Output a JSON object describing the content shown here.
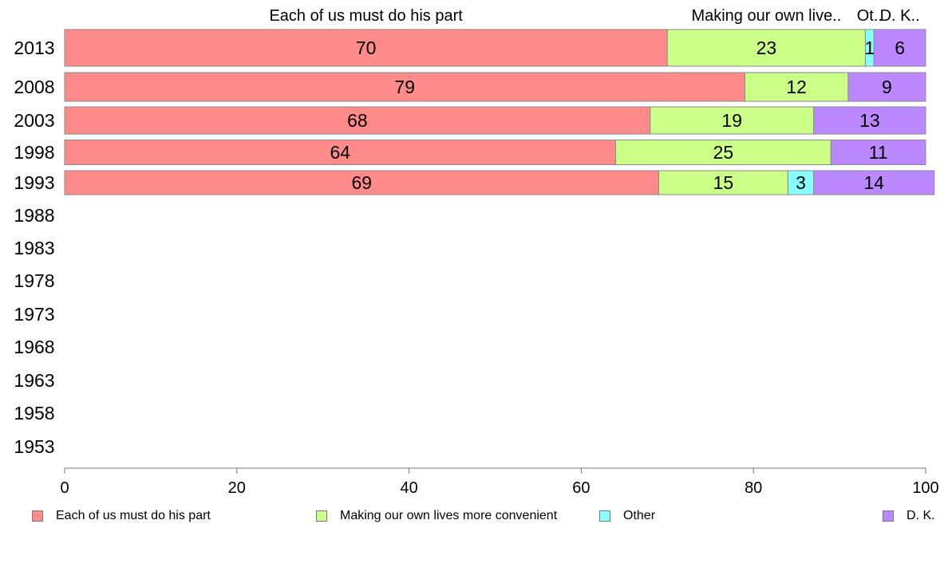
{
  "chart_data": {
    "type": "bar",
    "orientation": "horizontal",
    "stacked": true,
    "categories": [
      "2013",
      "2008",
      "2003",
      "1998",
      "1993",
      "1988",
      "1983",
      "1978",
      "1973",
      "1968",
      "1963",
      "1958",
      "1953"
    ],
    "series": [
      {
        "name": "Each of us must do his part",
        "color": "#ff8a8a",
        "values": [
          70,
          79,
          68,
          64,
          69,
          null,
          null,
          null,
          null,
          null,
          null,
          null,
          null
        ]
      },
      {
        "name": "Making our own lives more convenient",
        "color": "#ccff88",
        "values": [
          23,
          12,
          19,
          25,
          15,
          null,
          null,
          null,
          null,
          null,
          null,
          null,
          null
        ]
      },
      {
        "name": "Other",
        "color": "#88ffff",
        "values": [
          1,
          0,
          0,
          0,
          3,
          null,
          null,
          null,
          null,
          null,
          null,
          null,
          null
        ]
      },
      {
        "name": "D. K.",
        "color": "#bb88ff",
        "values": [
          6,
          9,
          13,
          11,
          14,
          null,
          null,
          null,
          null,
          null,
          null,
          null,
          null
        ]
      }
    ],
    "top_labels": [
      "Each of us must do his part",
      "Making our own live..",
      "Ot..",
      "D. K.."
    ],
    "xlim": [
      0,
      100
    ],
    "xticks": [
      0,
      20,
      40,
      60,
      80,
      100
    ],
    "grid": false,
    "legend_position": "bottom"
  }
}
